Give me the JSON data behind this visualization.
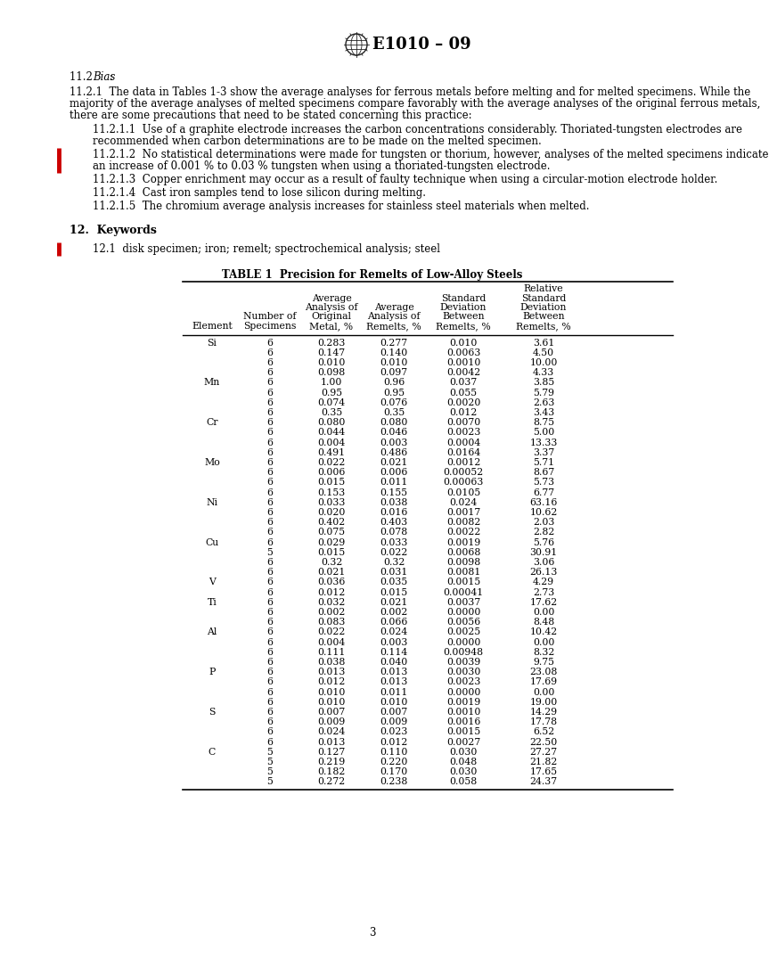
{
  "header_text": "E1010 – 09",
  "bg_color": "#ffffff",
  "text_color": "#000000",
  "redline_color": "#cc0000",
  "table_title": "TABLE 1  Precision for Remelts of Low-Alloy Steels",
  "col_header_texts": [
    [
      "Element"
    ],
    [
      "Number of",
      "Specimens"
    ],
    [
      "Average",
      "Analysis of",
      "Original",
      "Metal, %"
    ],
    [
      "Average",
      "Analysis of",
      "Remelts, %"
    ],
    [
      "Standard",
      "Deviation",
      "Between",
      "Remelts, %"
    ],
    [
      "Relative",
      "Standard",
      "Deviation",
      "Between",
      "Remelts, %"
    ]
  ],
  "table_data": [
    [
      "Si",
      "6",
      "0.283",
      "0.277",
      "0.010",
      "3.61"
    ],
    [
      "",
      "6",
      "0.147",
      "0.140",
      "0.0063",
      "4.50"
    ],
    [
      "",
      "6",
      "0.010",
      "0.010",
      "0.0010",
      "10.00"
    ],
    [
      "",
      "6",
      "0.098",
      "0.097",
      "0.0042",
      "4.33"
    ],
    [
      "Mn",
      "6",
      "1.00",
      "0.96",
      "0.037",
      "3.85"
    ],
    [
      "",
      "6",
      "0.95",
      "0.95",
      "0.055",
      "5.79"
    ],
    [
      "",
      "6",
      "0.074",
      "0.076",
      "0.0020",
      "2.63"
    ],
    [
      "",
      "6",
      "0.35",
      "0.35",
      "0.012",
      "3.43"
    ],
    [
      "Cr",
      "6",
      "0.080",
      "0.080",
      "0.0070",
      "8.75"
    ],
    [
      "",
      "6",
      "0.044",
      "0.046",
      "0.0023",
      "5.00"
    ],
    [
      "",
      "6",
      "0.004",
      "0.003",
      "0.0004",
      "13.33"
    ],
    [
      "",
      "6",
      "0.491",
      "0.486",
      "0.0164",
      "3.37"
    ],
    [
      "Mo",
      "6",
      "0.022",
      "0.021",
      "0.0012",
      "5.71"
    ],
    [
      "",
      "6",
      "0.006",
      "0.006",
      "0.00052",
      "8.67"
    ],
    [
      "",
      "6",
      "0.015",
      "0.011",
      "0.00063",
      "5.73"
    ],
    [
      "",
      "6",
      "0.153",
      "0.155",
      "0.0105",
      "6.77"
    ],
    [
      "Ni",
      "6",
      "0.033",
      "0.038",
      "0.024",
      "63.16"
    ],
    [
      "",
      "6",
      "0.020",
      "0.016",
      "0.0017",
      "10.62"
    ],
    [
      "",
      "6",
      "0.402",
      "0.403",
      "0.0082",
      "2.03"
    ],
    [
      "",
      "6",
      "0.075",
      "0.078",
      "0.0022",
      "2.82"
    ],
    [
      "Cu",
      "6",
      "0.029",
      "0.033",
      "0.0019",
      "5.76"
    ],
    [
      "",
      "5",
      "0.015",
      "0.022",
      "0.0068",
      "30.91"
    ],
    [
      "",
      "6",
      "0.32",
      "0.32",
      "0.0098",
      "3.06"
    ],
    [
      "",
      "6",
      "0.021",
      "0.031",
      "0.0081",
      "26.13"
    ],
    [
      "V",
      "6",
      "0.036",
      "0.035",
      "0.0015",
      "4.29"
    ],
    [
      "",
      "6",
      "0.012",
      "0.015",
      "0.00041",
      "2.73"
    ],
    [
      "Ti",
      "6",
      "0.032",
      "0.021",
      "0.0037",
      "17.62"
    ],
    [
      "",
      "6",
      "0.002",
      "0.002",
      "0.0000",
      "0.00"
    ],
    [
      "",
      "6",
      "0.083",
      "0.066",
      "0.0056",
      "8.48"
    ],
    [
      "Al",
      "6",
      "0.022",
      "0.024",
      "0.0025",
      "10.42"
    ],
    [
      "",
      "6",
      "0.004",
      "0.003",
      "0.0000",
      "0.00"
    ],
    [
      "",
      "6",
      "0.111",
      "0.114",
      "0.00948",
      "8.32"
    ],
    [
      "",
      "6",
      "0.038",
      "0.040",
      "0.0039",
      "9.75"
    ],
    [
      "P",
      "6",
      "0.013",
      "0.013",
      "0.0030",
      "23.08"
    ],
    [
      "",
      "6",
      "0.012",
      "0.013",
      "0.0023",
      "17.69"
    ],
    [
      "",
      "6",
      "0.010",
      "0.011",
      "0.0000",
      "0.00"
    ],
    [
      "",
      "6",
      "0.010",
      "0.010",
      "0.0019",
      "19.00"
    ],
    [
      "S",
      "6",
      "0.007",
      "0.007",
      "0.0010",
      "14.29"
    ],
    [
      "",
      "6",
      "0.009",
      "0.009",
      "0.0016",
      "17.78"
    ],
    [
      "",
      "6",
      "0.024",
      "0.023",
      "0.0015",
      "6.52"
    ],
    [
      "",
      "6",
      "0.013",
      "0.012",
      "0.0027",
      "22.50"
    ],
    [
      "C",
      "5",
      "0.127",
      "0.110",
      "0.030",
      "27.27"
    ],
    [
      "",
      "5",
      "0.219",
      "0.220",
      "0.048",
      "21.82"
    ],
    [
      "",
      "5",
      "0.182",
      "0.170",
      "0.030",
      "17.65"
    ],
    [
      "",
      "5",
      "0.272",
      "0.238",
      "0.058",
      "24.37"
    ]
  ],
  "page_number": "3",
  "lines_11_2_1": [
    "11.2.1  The data in Tables 1-3 show the average analyses for ferrous metals before melting and for melted specimens. While the",
    "majority of the average analyses of melted specimens compare favorably with the average analyses of the original ferrous metals,",
    "there are some precautions that need to be stated concerning this practice:"
  ],
  "lines_11_2_1_1": [
    "11.2.1.1  Use of a graphite electrode increases the carbon concentrations considerably. Thoriated-tungsten electrodes are",
    "recommended when carbon determinations are to be made on the melted specimen."
  ],
  "lines_11_2_1_2": [
    "11.2.1.2  No statistical determinations were made for tungsten or thorium, however, analyses of the melted specimens indicate",
    "an increase of 0.001 % to 0.03 % tungsten when using a thoriated-tungsten electrode."
  ],
  "line_11_2_1_3": "11.2.1.3  Copper enrichment may occur as a result of faulty technique when using a circular-motion electrode holder.",
  "line_11_2_1_4": "11.2.1.4  Cast iron samples tend to lose silicon during melting.",
  "line_11_2_1_5": "11.2.1.5  The chromium average analysis increases for stainless steel materials when melted.",
  "line_12_1": "12.1  disk specimen; iron; remelt; spectrochemical analysis; steel"
}
